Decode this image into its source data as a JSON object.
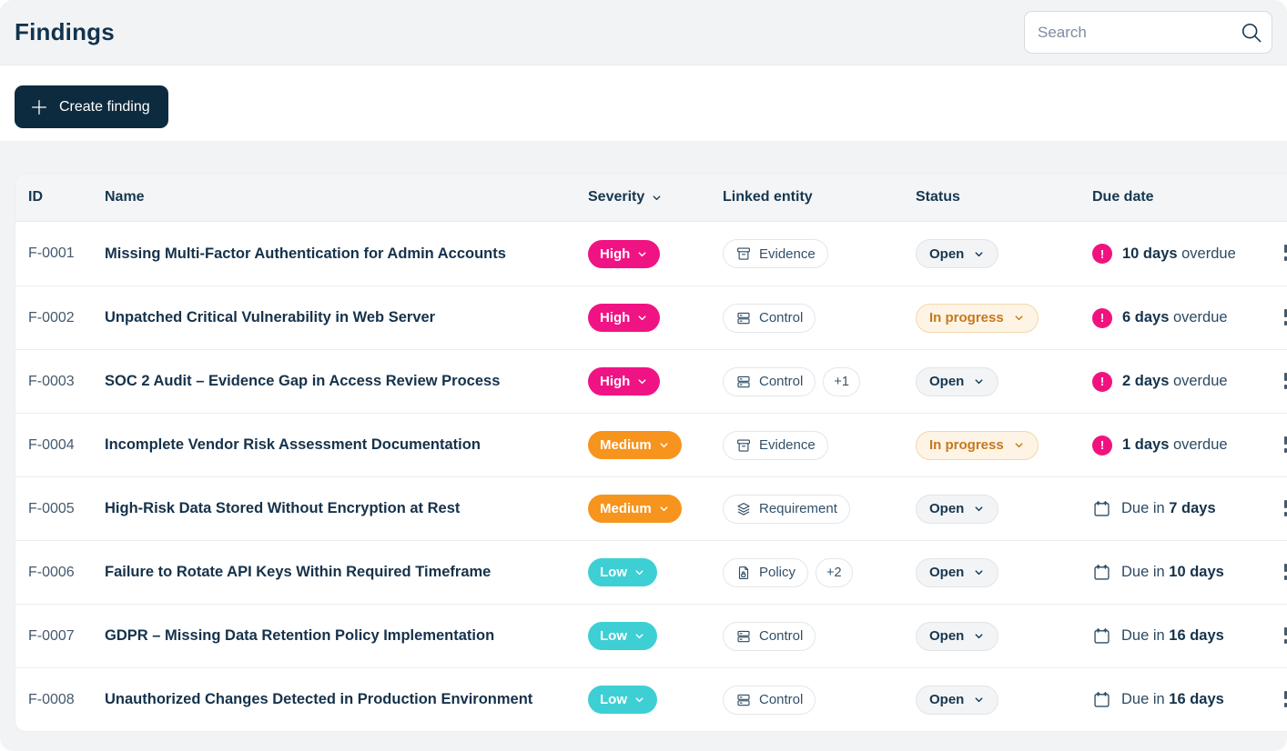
{
  "header": {
    "title": "Findings",
    "search_placeholder": "Search"
  },
  "toolbar": {
    "create_label": "Create finding"
  },
  "colors": {
    "severity": {
      "high": "#f01384",
      "medium": "#f7941d",
      "low": "#3ecfd4"
    },
    "overdue_badge": "#f0137f",
    "navy_text": "#15324b",
    "button_bg": "#0d2b3e",
    "in_progress_text": "#c7781d",
    "in_progress_bg": "#fdf4e5"
  },
  "table": {
    "columns": {
      "id": "ID",
      "name": "Name",
      "severity": "Severity",
      "linked": "Linked entity",
      "status": "Status",
      "due": "Due date"
    },
    "rows": [
      {
        "id": "F-0001",
        "name": "Missing Multi-Factor Authentication for Admin Accounts",
        "severity": "High",
        "entities": [
          {
            "icon": "evidence-icon",
            "label": "Evidence"
          }
        ],
        "more": null,
        "status": "Open",
        "status_variant": "open",
        "due": {
          "overdue": true,
          "bold": "10 days",
          "text": "overdue"
        }
      },
      {
        "id": "F-0002",
        "name": "Unpatched Critical Vulnerability in Web Server",
        "severity": "High",
        "entities": [
          {
            "icon": "control-icon",
            "label": "Control"
          }
        ],
        "more": null,
        "status": "In progress",
        "status_variant": "inprogress",
        "due": {
          "overdue": true,
          "bold": "6 days",
          "text": "overdue"
        }
      },
      {
        "id": "F-0003",
        "name": "SOC 2 Audit – Evidence Gap in Access Review Process",
        "severity": "High",
        "entities": [
          {
            "icon": "control-icon",
            "label": "Control"
          }
        ],
        "more": "+1",
        "status": "Open",
        "status_variant": "open",
        "due": {
          "overdue": true,
          "bold": "2 days",
          "text": "overdue"
        }
      },
      {
        "id": "F-0004",
        "name": "Incomplete Vendor Risk Assessment Documentation",
        "severity": "Medium",
        "entities": [
          {
            "icon": "evidence-icon",
            "label": "Evidence"
          }
        ],
        "more": null,
        "status": "In progress",
        "status_variant": "inprogress",
        "due": {
          "overdue": true,
          "bold": "1 days",
          "text": "overdue"
        }
      },
      {
        "id": "F-0005",
        "name": "High-Risk Data Stored Without Encryption at Rest",
        "severity": "Medium",
        "entities": [
          {
            "icon": "requirement-icon",
            "label": "Requirement"
          }
        ],
        "more": null,
        "status": "Open",
        "status_variant": "open",
        "due": {
          "overdue": false,
          "text": "Due in",
          "bold": "7 days"
        }
      },
      {
        "id": "F-0006",
        "name": "Failure to Rotate API Keys Within Required Timeframe",
        "severity": "Low",
        "entities": [
          {
            "icon": "policy-icon",
            "label": "Policy"
          }
        ],
        "more": "+2",
        "status": "Open",
        "status_variant": "open",
        "due": {
          "overdue": false,
          "text": "Due in",
          "bold": "10 days"
        }
      },
      {
        "id": "F-0007",
        "name": "GDPR – Missing Data Retention Policy Implementation",
        "severity": "Low",
        "entities": [
          {
            "icon": "control-icon",
            "label": "Control"
          }
        ],
        "more": null,
        "status": "Open",
        "status_variant": "open",
        "due": {
          "overdue": false,
          "text": "Due in",
          "bold": "16 days"
        }
      },
      {
        "id": "F-0008",
        "name": "Unauthorized Changes Detected in Production Environment",
        "severity": "Low",
        "entities": [
          {
            "icon": "control-icon",
            "label": "Control"
          }
        ],
        "more": null,
        "status": "Open",
        "status_variant": "open",
        "due": {
          "overdue": false,
          "text": "Due in",
          "bold": "16 days"
        }
      }
    ]
  }
}
